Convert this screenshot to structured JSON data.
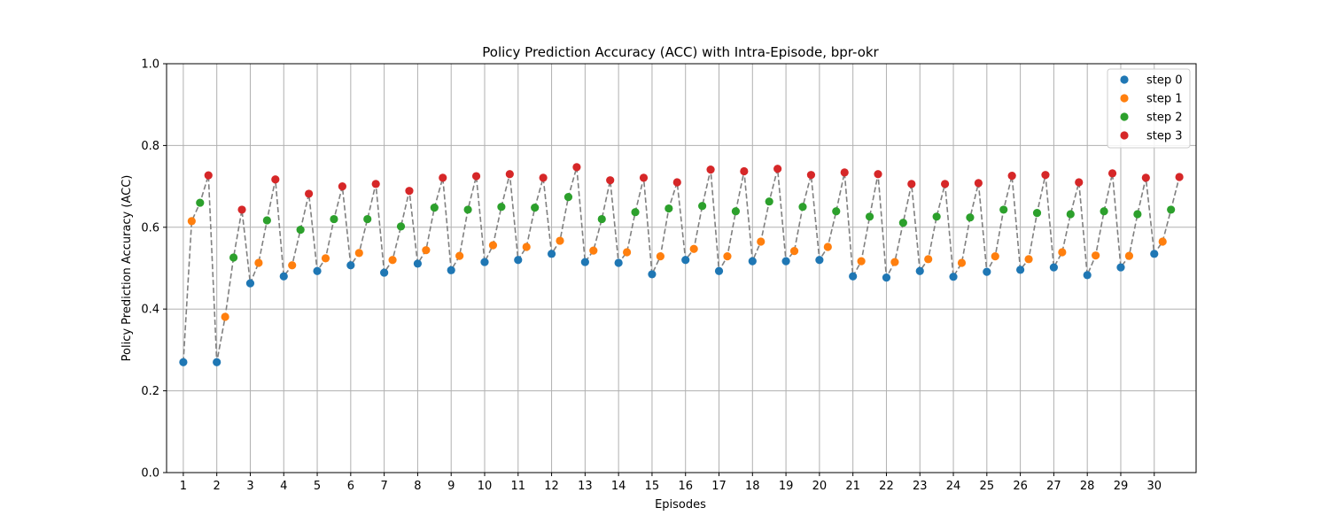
{
  "chart_data": {
    "type": "scatter",
    "title": "Policy Prediction Accuracy (ACC) with Intra-Episode, bpr-okr",
    "xlabel": "Episodes",
    "ylabel": "Policy Prediction Accuracy (ACC)",
    "ylim": [
      0.0,
      1.0
    ],
    "xlim": [
      0.5,
      31.25
    ],
    "yticks": [
      "0.0",
      "0.2",
      "0.4",
      "0.6",
      "0.8",
      "1.0"
    ],
    "xticks": [
      "1",
      "2",
      "3",
      "4",
      "5",
      "6",
      "7",
      "8",
      "9",
      "10",
      "11",
      "12",
      "13",
      "14",
      "15",
      "16",
      "17",
      "18",
      "19",
      "20",
      "21",
      "22",
      "23",
      "24",
      "25",
      "26",
      "27",
      "28",
      "29",
      "30"
    ],
    "grid": true,
    "legend_position": "top-right",
    "connector": {
      "style": "dashed",
      "color": "#808080"
    },
    "step_offset": 0.25,
    "series": [
      {
        "name": "step 0",
        "color": "#1f77b4",
        "values": [
          0.27,
          0.27,
          0.463,
          0.48,
          0.493,
          0.507,
          0.489,
          0.511,
          0.495,
          0.515,
          0.52,
          0.535,
          0.515,
          0.513,
          0.485,
          0.52,
          0.493,
          0.517,
          0.517,
          0.52,
          0.48,
          0.477,
          0.493,
          0.479,
          0.491,
          0.496,
          0.502,
          0.483,
          0.502,
          0.535
        ]
      },
      {
        "name": "step 1",
        "color": "#ff7f0e",
        "values": [
          0.615,
          0.381,
          0.513,
          0.507,
          0.524,
          0.537,
          0.52,
          0.544,
          0.53,
          0.556,
          0.552,
          0.567,
          0.543,
          0.539,
          0.529,
          0.547,
          0.529,
          0.565,
          0.542,
          0.552,
          0.517,
          0.515,
          0.522,
          0.513,
          0.529,
          0.522,
          0.539,
          0.531,
          0.53,
          0.565
        ]
      },
      {
        "name": "step 2",
        "color": "#2ca02c",
        "values": [
          0.66,
          0.526,
          0.617,
          0.594,
          0.62,
          0.62,
          0.602,
          0.648,
          0.643,
          0.65,
          0.648,
          0.674,
          0.62,
          0.637,
          0.646,
          0.652,
          0.639,
          0.663,
          0.65,
          0.639,
          0.626,
          0.611,
          0.626,
          0.624,
          0.643,
          0.635,
          0.632,
          0.639,
          0.632,
          0.643
        ]
      },
      {
        "name": "step 3",
        "color": "#d62728",
        "values": [
          0.727,
          0.643,
          0.717,
          0.682,
          0.7,
          0.706,
          0.689,
          0.721,
          0.725,
          0.73,
          0.721,
          0.747,
          0.715,
          0.721,
          0.71,
          0.741,
          0.737,
          0.743,
          0.728,
          0.734,
          0.73,
          0.706,
          0.706,
          0.708,
          0.726,
          0.728,
          0.71,
          0.732,
          0.721,
          0.723
        ]
      }
    ]
  }
}
